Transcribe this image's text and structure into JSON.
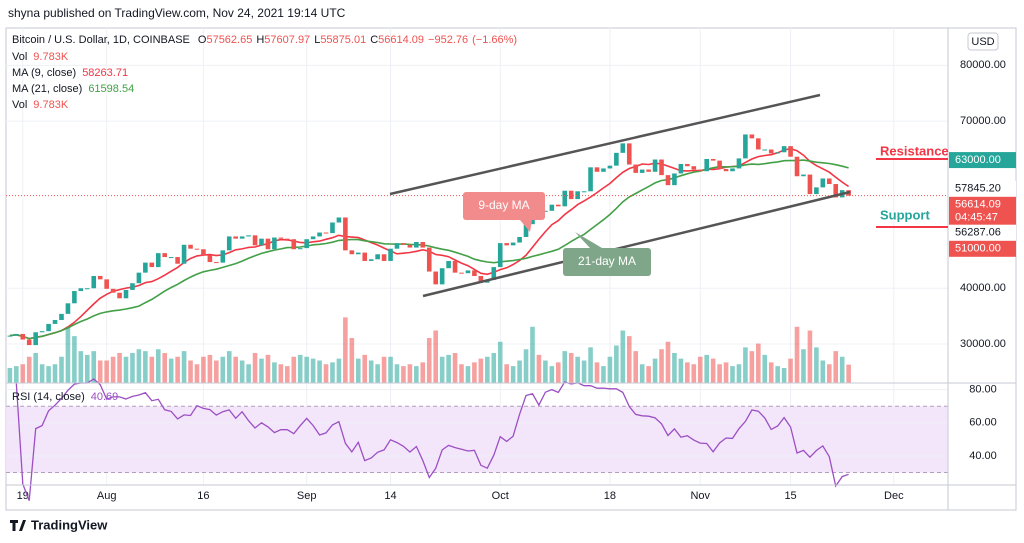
{
  "header": {
    "published": "shyna published on TradingView.com, Nov 24, 2021 19:14 UTC",
    "brand": "TradingView"
  },
  "chart_data": {
    "type": "candlestick",
    "title": "Bitcoin / U.S. Dollar, 1D, COINBASE",
    "ohlc_labels": [
      "O",
      "H",
      "L",
      "C"
    ],
    "ohlc": [
      57562.65,
      57607.97,
      55875.01,
      56614.09
    ],
    "change": [
      {
        "value": -952.76,
        "label": "−952.76"
      },
      {
        "value": -1.66,
        "label": "(−1.66%)"
      }
    ],
    "indicators": [
      {
        "name": "Vol",
        "value": {
          "value": 9.783,
          "label": "9.783K"
        },
        "color": "#ef5350"
      },
      {
        "name": "MA (9, close)",
        "value": 58263.71,
        "color": "#f23645",
        "period": 9
      },
      {
        "name": "MA (21, close)",
        "value": 61598.54,
        "color": "#43a047",
        "period": 21
      },
      {
        "name": "Vol",
        "value": {
          "value": 9.783,
          "label": "9.783K"
        },
        "color": "#ef5350"
      }
    ],
    "closes": [
      31500,
      31800,
      30800,
      29800,
      32100,
      32300,
      33600,
      34300,
      35400,
      37300,
      39500,
      40000,
      40000,
      42200,
      41600,
      39900,
      39200,
      38200,
      39700,
      40900,
      42800,
      44600,
      43800,
      46300,
      45600,
      45600,
      44400,
      47800,
      47100,
      47000,
      45900,
      44700,
      44600,
      46800,
      49300,
      48900,
      49300,
      49500,
      47700,
      48900,
      47000,
      49100,
      48900,
      48800,
      47000,
      47200,
      48800,
      49300,
      50000,
      49900,
      51800,
      52700,
      46800,
      46100,
      46400,
      44900,
      45200,
      46100,
      44900,
      47100,
      48100,
      47800,
      47300,
      48300,
      47300,
      43000,
      40700,
      43600,
      44900,
      42800,
      42700,
      43200,
      42200,
      41000,
      41500,
      43800,
      48100,
      47700,
      48200,
      49200,
      51500,
      55300,
      53800,
      53900,
      55000,
      54700,
      57500,
      56000,
      57400,
      57400,
      61700,
      60900,
      61500,
      62000,
      64300,
      66000,
      62200,
      60700,
      61300,
      60900,
      63100,
      60300,
      58500,
      60600,
      62300,
      61900,
      61300,
      61000,
      63200,
      62900,
      61400,
      61000,
      61500,
      63300,
      67600,
      66900,
      64900,
      64900,
      64200,
      64400,
      65500,
      63600,
      60100,
      60400,
      56900,
      58100,
      59700,
      58700,
      56300,
      57600,
      56614.09
    ],
    "volumes": [
      8,
      9,
      10,
      14,
      16,
      10,
      9,
      10,
      14,
      30,
      25,
      17,
      15,
      17,
      12,
      12,
      14,
      16,
      14,
      16,
      18,
      17,
      14,
      18,
      16,
      13,
      14,
      17,
      12,
      10,
      14,
      15,
      12,
      14,
      17,
      14,
      12,
      10,
      16,
      13,
      15,
      11,
      10,
      9,
      14,
      15,
      14,
      13,
      12,
      10,
      11,
      13,
      35,
      24,
      13,
      15,
      12,
      10,
      14,
      14,
      10,
      9,
      10,
      9,
      11,
      24,
      28,
      14,
      15,
      16,
      10,
      9,
      11,
      13,
      14,
      16,
      22,
      10,
      9,
      12,
      18,
      30,
      15,
      12,
      9,
      11,
      17,
      16,
      14,
      12,
      19,
      11,
      9,
      14,
      20,
      28,
      25,
      17,
      10,
      9,
      13,
      18,
      22,
      16,
      13,
      11,
      10,
      14,
      15,
      13,
      10,
      11,
      9,
      10,
      19,
      17,
      21,
      15,
      11,
      9,
      8,
      13,
      30,
      18,
      28,
      19,
      12,
      10,
      17,
      14,
      9.783
    ],
    "volume_lim": [
      0,
      40
    ],
    "xlim": [
      -0.6,
      145.4
    ],
    "xticks": [
      {
        "value": 2,
        "label": "19"
      },
      {
        "value": 15,
        "label": "Aug"
      },
      {
        "value": 30,
        "label": "16"
      },
      {
        "value": 46,
        "label": "Sep"
      },
      {
        "value": 59,
        "label": "14"
      },
      {
        "value": 76,
        "label": "Oct"
      },
      {
        "value": 93,
        "label": "18"
      },
      {
        "value": 107,
        "label": "Nov"
      },
      {
        "value": 121,
        "label": "15"
      },
      {
        "value": 137,
        "label": "Dec"
      }
    ],
    "ylim": [
      23000,
      86700
    ],
    "yticks": [
      {
        "value": 30000,
        "label": "30000.00"
      },
      {
        "value": 40000,
        "label": "40000.00"
      },
      {
        "value": 70000,
        "label": "70000.00"
      },
      {
        "value": 80000,
        "label": "80000.00"
      }
    ],
    "price_tags": [
      {
        "value": 63000,
        "label": "63000.00",
        "color": "#26a69a"
      },
      {
        "value": 57845.2,
        "label": "57845.20",
        "color": "#ffffff"
      },
      {
        "value": 56614.09,
        "label": "56614.09",
        "color": "#ef5350"
      },
      {
        "value": 56287.06,
        "label": "56287.06",
        "color": "#ffffff"
      },
      {
        "value": 51000,
        "label": "51000.00",
        "color": "#ef5350"
      }
    ],
    "countdown": "04:45:47",
    "rsi": {
      "name": "RSI (14, close)",
      "value": 40.69,
      "color": "#9c4fc4",
      "period": 14,
      "ylim": [
        22.5,
        84
      ],
      "band": [
        30,
        70
      ],
      "yticks": [
        {
          "value": 40,
          "label": "40.00"
        },
        {
          "value": 60,
          "label": "60.00"
        },
        {
          "value": 80,
          "label": "80.00"
        }
      ]
    },
    "annotations": {
      "resistance": "Resistance",
      "support": "Support",
      "ma9": "9-day MA",
      "ma21": "21-day MA"
    },
    "currency": "USD",
    "up_color": "#26a69a",
    "down_color": "#ef5350",
    "grid": true
  }
}
